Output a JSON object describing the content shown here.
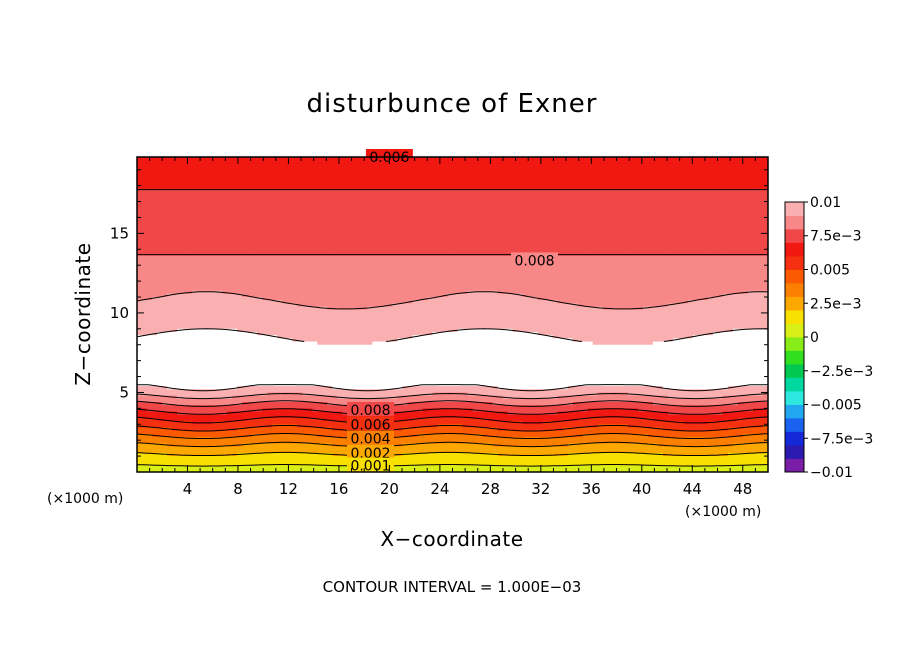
{
  "chart_data": {
    "type": "heatmap",
    "title": "disturbunce of Exner",
    "xlabel": "X−coordinate",
    "ylabel": "Z−coordinate",
    "x_unit_label": "(×1000 m)",
    "z_unit_label": "(×1000 m)",
    "xlim": [
      0,
      50
    ],
    "ylim": [
      0,
      19.8
    ],
    "x_ticks": [
      {
        "value": 4,
        "label": "4"
      },
      {
        "value": 8,
        "label": "8"
      },
      {
        "value": 12,
        "label": "12"
      },
      {
        "value": 16,
        "label": "16"
      },
      {
        "value": 20,
        "label": "20"
      },
      {
        "value": 24,
        "label": "24"
      },
      {
        "value": 28,
        "label": "28"
      },
      {
        "value": 32,
        "label": "32"
      },
      {
        "value": 36,
        "label": "36"
      },
      {
        "value": 40,
        "label": "40"
      },
      {
        "value": 44,
        "label": "44"
      },
      {
        "value": 48,
        "label": "48"
      }
    ],
    "y_ticks": [
      {
        "value": 5,
        "label": "5"
      },
      {
        "value": 10,
        "label": "10"
      },
      {
        "value": 15,
        "label": "15"
      }
    ],
    "colorbar": {
      "range": [
        -0.01,
        0.01
      ],
      "colors": [
        "#7a1ea8",
        "#2a1ab0",
        "#1428d8",
        "#1a62f0",
        "#22a8f0",
        "#2ee8e0",
        "#00d8a0",
        "#00c850",
        "#30e020",
        "#88ec18",
        "#d8f018",
        "#f8e000",
        "#fca800",
        "#fc8000",
        "#fc5a00",
        "#f43010",
        "#f01810",
        "#f04848",
        "#f88888",
        "#fab0b0"
      ],
      "labels": [
        {
          "value": 0.01,
          "text": "0.01"
        },
        {
          "value": 0.0075,
          "text": "7.5e−3"
        },
        {
          "value": 0.005,
          "text": "0.005"
        },
        {
          "value": 0.0025,
          "text": "2.5e−3"
        },
        {
          "value": 0,
          "text": "0"
        },
        {
          "value": -0.0025,
          "text": "−2.5e−3"
        },
        {
          "value": -0.005,
          "text": "−0.005"
        },
        {
          "value": -0.0075,
          "text": "−7.5e−3"
        },
        {
          "value": -0.01,
          "text": "−0.01"
        }
      ]
    },
    "value_profile_z": [
      [
        0.0,
        0.0005
      ],
      [
        0.5,
        0.0011
      ],
      [
        1.0,
        0.0018
      ],
      [
        1.5,
        0.0026
      ],
      [
        2.0,
        0.0035
      ],
      [
        2.5,
        0.0045
      ],
      [
        3.0,
        0.0055
      ],
      [
        3.5,
        0.0064
      ],
      [
        4.0,
        0.0074
      ],
      [
        4.5,
        0.0084
      ],
      [
        5.0,
        0.0095
      ],
      [
        5.5,
        0.0102
      ],
      [
        8.0,
        0.0102
      ],
      [
        9.0,
        0.0098
      ],
      [
        10.0,
        0.0093
      ],
      [
        11.0,
        0.0089
      ],
      [
        12.0,
        0.0086
      ],
      [
        13.0,
        0.0082
      ],
      [
        14.0,
        0.0079
      ],
      [
        15.0,
        0.0077
      ],
      [
        16.0,
        0.0075
      ],
      [
        17.0,
        0.0073
      ],
      [
        18.0,
        0.0069
      ],
      [
        19.0,
        0.0064
      ],
      [
        19.8,
        0.006
      ]
    ],
    "contour_labels": [
      {
        "text": "0.006",
        "x": 20,
        "z": 19.8
      },
      {
        "text": "0.008",
        "x": 31.5,
        "z": 13.3
      },
      {
        "text": "0.008",
        "x": 18.5,
        "z": 3.9
      },
      {
        "text": "0.006",
        "x": 18.5,
        "z": 3.0
      },
      {
        "text": "0.004",
        "x": 18.5,
        "z": 2.1
      },
      {
        "text": "0.002",
        "x": 18.5,
        "z": 1.2
      },
      {
        "text": "0.001",
        "x": 18.5,
        "z": 0.4
      }
    ],
    "contour_interval_text": "CONTOUR INTERVAL = 1.000E−03"
  }
}
